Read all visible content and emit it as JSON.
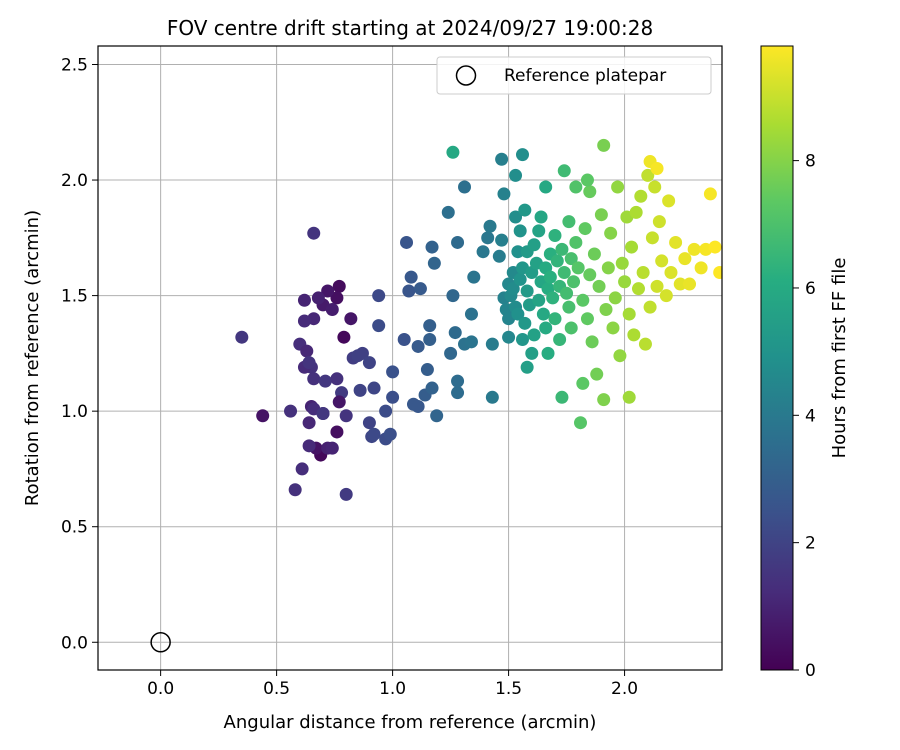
{
  "chart_data": {
    "type": "scatter",
    "title": "FOV centre drift starting at 2024/09/27 19:00:28",
    "xlabel": "Angular distance from reference (arcmin)",
    "ylabel": "Rotation from reference (arcmin)",
    "xlim": [
      -0.27,
      2.42
    ],
    "ylim": [
      -0.12,
      2.58
    ],
    "xticks": [
      0.0,
      0.5,
      1.0,
      1.5,
      2.0
    ],
    "xtick_labels": [
      "0.0",
      "0.5",
      "1.0",
      "1.5",
      "2.0"
    ],
    "yticks": [
      0.0,
      0.5,
      1.0,
      1.5,
      2.0,
      2.5
    ],
    "ytick_labels": [
      "0.0",
      "0.5",
      "1.0",
      "1.5",
      "2.0",
      "2.5"
    ],
    "grid": true,
    "legend": {
      "placement": "top-right",
      "entries": [
        {
          "label": "Reference platepar",
          "marker": "open-circle",
          "color": "#000000"
        }
      ]
    },
    "reference_point": {
      "x": 0.0,
      "y": 0.0
    },
    "colorbar": {
      "label": "Hours from first FF file",
      "range": [
        0,
        9.8
      ],
      "ticks": [
        0,
        2,
        4,
        6,
        8
      ],
      "tick_labels": [
        "0",
        "2",
        "4",
        "6",
        "8"
      ],
      "colormap": [
        "#440154",
        "#472c7a",
        "#3b518b",
        "#2c718e",
        "#21918c",
        "#27ad81",
        "#5cc863",
        "#aadc32",
        "#fde725"
      ]
    },
    "points": [
      [
        0.79,
        1.32,
        0.2
      ],
      [
        0.77,
        1.54,
        0.3
      ],
      [
        0.76,
        1.49,
        0.4
      ],
      [
        0.72,
        1.52,
        0.6
      ],
      [
        0.7,
        1.46,
        0.7
      ],
      [
        0.68,
        1.49,
        0.9
      ],
      [
        0.74,
        1.44,
        0.8
      ],
      [
        0.66,
        1.4,
        1.1
      ],
      [
        0.62,
        1.39,
        1.2
      ],
      [
        0.62,
        1.48,
        1.0
      ],
      [
        0.6,
        1.29,
        1.3
      ],
      [
        0.63,
        1.26,
        1.1
      ],
      [
        0.65,
        1.19,
        1.4
      ],
      [
        0.62,
        1.19,
        1.2
      ],
      [
        0.64,
        1.21,
        1.5
      ],
      [
        0.66,
        1.14,
        1.4
      ],
      [
        0.71,
        1.13,
        1.6
      ],
      [
        0.66,
        1.77,
        1.5
      ],
      [
        0.78,
        1.08,
        1.7
      ],
      [
        0.76,
        1.14,
        1.4
      ],
      [
        0.77,
        1.04,
        0.6
      ],
      [
        0.76,
        0.91,
        0.4
      ],
      [
        0.69,
        0.81,
        0.2
      ],
      [
        0.67,
        0.84,
        0.5
      ],
      [
        0.72,
        0.84,
        0.9
      ],
      [
        0.74,
        0.84,
        1.0
      ],
      [
        0.64,
        0.85,
        1.2
      ],
      [
        0.61,
        0.75,
        1.3
      ],
      [
        0.58,
        0.66,
        1.4
      ],
      [
        0.64,
        0.95,
        1.1
      ],
      [
        0.7,
        0.99,
        1.2
      ],
      [
        0.65,
        1.02,
        1.0
      ],
      [
        0.66,
        1.01,
        1.3
      ],
      [
        0.7,
        0.99,
        1.6
      ],
      [
        0.56,
        1.0,
        1.4
      ],
      [
        0.44,
        0.98,
        0.5
      ],
      [
        0.35,
        1.32,
        1.6
      ],
      [
        0.8,
        0.64,
        1.7
      ],
      [
        0.8,
        0.98,
        1.5
      ],
      [
        0.82,
        1.4,
        0.6
      ],
      [
        0.83,
        1.23,
        1.8
      ],
      [
        0.85,
        1.24,
        1.9
      ],
      [
        0.87,
        1.25,
        1.9
      ],
      [
        0.86,
        1.09,
        2.0
      ],
      [
        0.9,
        1.21,
        2.0
      ],
      [
        0.9,
        0.95,
        2.0
      ],
      [
        0.91,
        0.89,
        2.1
      ],
      [
        0.92,
        1.1,
        2.1
      ],
      [
        0.92,
        0.9,
        2.2
      ],
      [
        0.94,
        1.5,
        2.2
      ],
      [
        0.94,
        1.37,
        2.3
      ],
      [
        0.97,
        1.0,
        2.3
      ],
      [
        0.97,
        0.88,
        2.3
      ],
      [
        0.99,
        0.9,
        2.4
      ],
      [
        1.0,
        1.06,
        2.4
      ],
      [
        1.0,
        1.17,
        2.5
      ],
      [
        1.05,
        1.31,
        2.5
      ],
      [
        1.06,
        1.73,
        2.6
      ],
      [
        1.07,
        1.52,
        2.6
      ],
      [
        1.08,
        1.58,
        2.7
      ],
      [
        1.09,
        1.03,
        2.7
      ],
      [
        1.11,
        1.02,
        2.7
      ],
      [
        1.11,
        1.28,
        2.8
      ],
      [
        1.12,
        1.53,
        2.8
      ],
      [
        1.14,
        1.07,
        2.9
      ],
      [
        1.15,
        1.18,
        2.9
      ],
      [
        1.16,
        1.31,
        3.0
      ],
      [
        1.16,
        1.37,
        3.0
      ],
      [
        1.17,
        1.1,
        3.1
      ],
      [
        1.17,
        1.71,
        3.1
      ],
      [
        1.18,
        1.64,
        3.2
      ],
      [
        1.19,
        0.98,
        3.2
      ],
      [
        1.25,
        1.25,
        3.3
      ],
      [
        1.26,
        1.5,
        3.3
      ],
      [
        1.27,
        1.34,
        3.4
      ],
      [
        1.28,
        1.73,
        3.4
      ],
      [
        1.28,
        1.08,
        3.5
      ],
      [
        1.28,
        1.13,
        3.5
      ],
      [
        1.24,
        1.86,
        3.6
      ],
      [
        1.31,
        1.97,
        3.6
      ],
      [
        1.31,
        1.29,
        3.7
      ],
      [
        1.34,
        1.42,
        3.7
      ],
      [
        1.34,
        1.3,
        3.8
      ],
      [
        1.35,
        1.58,
        3.8
      ],
      [
        1.39,
        1.69,
        3.9
      ],
      [
        1.41,
        1.75,
        3.9
      ],
      [
        1.42,
        1.8,
        4.0
      ],
      [
        1.43,
        1.06,
        4.0
      ],
      [
        1.43,
        1.29,
        4.1
      ],
      [
        1.46,
        1.67,
        4.1
      ],
      [
        1.47,
        1.74,
        4.2
      ],
      [
        1.47,
        2.09,
        4.2
      ],
      [
        1.48,
        1.94,
        4.3
      ],
      [
        1.48,
        1.49,
        4.3
      ],
      [
        1.49,
        1.44,
        4.4
      ],
      [
        1.5,
        1.4,
        4.4
      ],
      [
        1.5,
        1.32,
        4.5
      ],
      [
        1.5,
        1.55,
        4.5
      ],
      [
        1.51,
        1.5,
        4.6
      ],
      [
        1.52,
        1.6,
        4.6
      ],
      [
        1.52,
        1.53,
        4.7
      ],
      [
        1.53,
        1.45,
        4.7
      ],
      [
        1.53,
        1.84,
        4.8
      ],
      [
        1.53,
        2.02,
        4.8
      ],
      [
        1.54,
        1.69,
        4.9
      ],
      [
        1.54,
        1.42,
        4.9
      ],
      [
        1.55,
        1.78,
        5.0
      ],
      [
        1.55,
        1.57,
        5.0
      ],
      [
        1.56,
        1.31,
        5.1
      ],
      [
        1.56,
        1.62,
        5.1
      ],
      [
        1.57,
        1.38,
        5.2
      ],
      [
        1.57,
        1.87,
        5.2
      ],
      [
        1.58,
        1.52,
        5.3
      ],
      [
        1.58,
        1.69,
        5.3
      ],
      [
        1.59,
        1.46,
        5.4
      ],
      [
        1.6,
        1.6,
        5.4
      ],
      [
        1.6,
        1.25,
        5.5
      ],
      [
        1.61,
        1.72,
        5.5
      ],
      [
        1.61,
        1.33,
        5.6
      ],
      [
        1.62,
        1.64,
        5.6
      ],
      [
        1.63,
        1.48,
        5.7
      ],
      [
        1.63,
        1.78,
        5.7
      ],
      [
        1.64,
        1.56,
        5.8
      ],
      [
        1.64,
        1.84,
        5.8
      ],
      [
        1.65,
        1.42,
        5.9
      ],
      [
        1.66,
        1.97,
        5.9
      ],
      [
        1.66,
        1.36,
        6.0
      ],
      [
        1.66,
        1.62,
        6.0
      ],
      [
        1.67,
        1.53,
        6.1
      ],
      [
        1.67,
        1.25,
        6.1
      ],
      [
        1.68,
        1.68,
        6.2
      ],
      [
        1.68,
        1.58,
        6.2
      ],
      [
        1.69,
        1.49,
        6.3
      ],
      [
        1.7,
        1.76,
        6.3
      ],
      [
        1.7,
        1.4,
        6.4
      ],
      [
        1.71,
        1.65,
        6.4
      ],
      [
        1.72,
        1.54,
        6.5
      ],
      [
        1.72,
        1.31,
        6.5
      ],
      [
        1.73,
        1.7,
        6.6
      ],
      [
        1.73,
        1.06,
        6.6
      ],
      [
        1.74,
        1.6,
        6.7
      ],
      [
        1.74,
        2.04,
        6.7
      ],
      [
        1.75,
        1.51,
        6.8
      ],
      [
        1.76,
        1.82,
        6.8
      ],
      [
        1.76,
        1.45,
        6.9
      ],
      [
        1.77,
        1.66,
        6.9
      ],
      [
        1.77,
        1.36,
        7.0
      ],
      [
        1.78,
        1.56,
        7.0
      ],
      [
        1.79,
        1.73,
        7.1
      ],
      [
        1.79,
        1.97,
        7.1
      ],
      [
        1.8,
        1.62,
        7.2
      ],
      [
        1.81,
        0.95,
        7.2
      ],
      [
        1.82,
        1.48,
        7.3
      ],
      [
        1.82,
        1.12,
        7.3
      ],
      [
        1.83,
        1.79,
        7.4
      ],
      [
        1.84,
        1.4,
        7.4
      ],
      [
        1.85,
        1.59,
        7.5
      ],
      [
        1.85,
        1.95,
        7.5
      ],
      [
        1.86,
        1.3,
        7.6
      ],
      [
        1.87,
        1.68,
        7.6
      ],
      [
        1.88,
        1.16,
        7.7
      ],
      [
        1.89,
        1.54,
        7.7
      ],
      [
        1.9,
        1.85,
        7.8
      ],
      [
        1.91,
        2.15,
        7.8
      ],
      [
        1.91,
        1.05,
        7.9
      ],
      [
        1.92,
        1.44,
        7.9
      ],
      [
        1.93,
        1.62,
        8.0
      ],
      [
        1.94,
        1.77,
        8.0
      ],
      [
        1.95,
        1.36,
        8.1
      ],
      [
        1.96,
        1.49,
        8.1
      ],
      [
        1.97,
        1.97,
        8.2
      ],
      [
        1.98,
        1.24,
        8.2
      ],
      [
        1.99,
        1.64,
        8.3
      ],
      [
        2.0,
        1.56,
        8.3
      ],
      [
        2.01,
        1.84,
        8.4
      ],
      [
        2.02,
        1.06,
        8.4
      ],
      [
        2.02,
        1.42,
        8.5
      ],
      [
        2.03,
        1.71,
        8.5
      ],
      [
        2.04,
        1.33,
        8.6
      ],
      [
        2.05,
        1.86,
        8.6
      ],
      [
        2.06,
        1.53,
        8.7
      ],
      [
        2.07,
        1.93,
        8.7
      ],
      [
        2.08,
        1.6,
        8.8
      ],
      [
        2.09,
        1.29,
        8.8
      ],
      [
        2.1,
        2.02,
        8.9
      ],
      [
        2.11,
        1.45,
        8.9
      ],
      [
        2.12,
        1.75,
        9.0
      ],
      [
        2.13,
        1.97,
        9.0
      ],
      [
        2.14,
        1.54,
        9.1
      ],
      [
        2.15,
        1.82,
        9.1
      ],
      [
        2.16,
        1.65,
        9.2
      ],
      [
        2.18,
        1.5,
        9.2
      ],
      [
        2.19,
        1.91,
        9.3
      ],
      [
        2.2,
        1.6,
        9.3
      ],
      [
        2.22,
        1.73,
        9.4
      ],
      [
        2.24,
        1.55,
        9.4
      ],
      [
        2.26,
        1.66,
        9.5
      ],
      [
        2.28,
        1.55,
        9.5
      ],
      [
        2.3,
        1.7,
        9.6
      ],
      [
        2.33,
        1.62,
        9.6
      ],
      [
        2.35,
        1.7,
        9.7
      ],
      [
        2.37,
        1.94,
        9.7
      ],
      [
        2.39,
        1.71,
        9.8
      ],
      [
        2.41,
        1.6,
        9.8
      ],
      [
        1.26,
        2.12,
        5.9
      ],
      [
        1.56,
        2.11,
        4.8
      ],
      [
        1.84,
        2.0,
        7.3
      ],
      [
        2.11,
        2.08,
        9.6
      ],
      [
        2.14,
        2.05,
        9.7
      ],
      [
        1.58,
        1.19,
        5.5
      ]
    ]
  }
}
